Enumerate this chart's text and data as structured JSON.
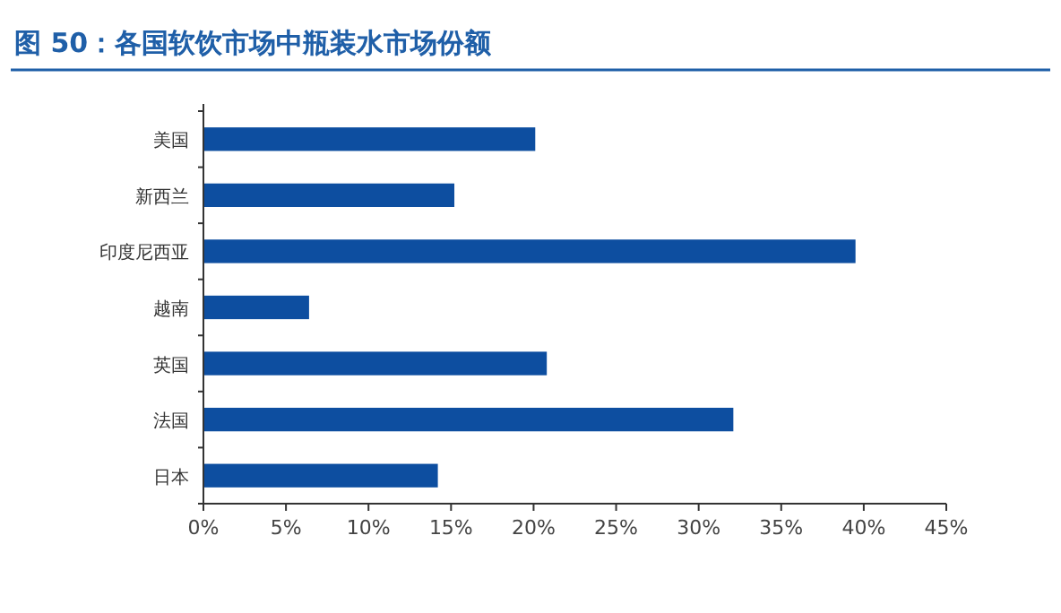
{
  "chart_data": {
    "type": "bar",
    "orientation": "horizontal",
    "title": "图 50：各国软饮市场中瓶装水市场份额",
    "categories": [
      "美国",
      "新西兰",
      "印度尼西亚",
      "越南",
      "英国",
      "法国",
      "日本"
    ],
    "values": [
      20.1,
      15.2,
      39.5,
      6.4,
      20.8,
      32.1,
      14.2
    ],
    "color": "#0d4ea0",
    "xlim": [
      0,
      45
    ],
    "xticks": [
      {
        "value": 0,
        "label": "0%"
      },
      {
        "value": 5,
        "label": "5%"
      },
      {
        "value": 10,
        "label": "10%"
      },
      {
        "value": 15,
        "label": "15%"
      },
      {
        "value": 20,
        "label": "20%"
      },
      {
        "value": 25,
        "label": "25%"
      },
      {
        "value": 30,
        "label": "30%"
      },
      {
        "value": 35,
        "label": "35%"
      },
      {
        "value": 40,
        "label": "40%"
      },
      {
        "value": 45,
        "label": "45%"
      }
    ],
    "grid": false
  }
}
